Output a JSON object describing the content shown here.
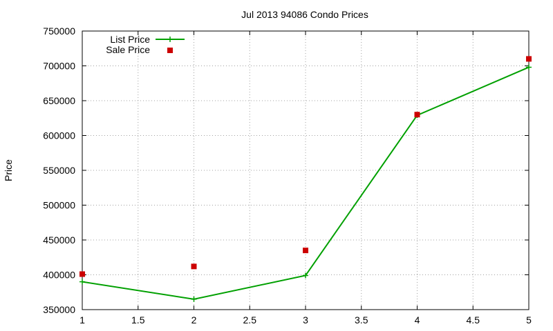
{
  "chart_data": {
    "type": "line",
    "title": "Jul 2013 94086 Condo Prices",
    "xlabel": "",
    "ylabel": "Price",
    "xlim": [
      1,
      5
    ],
    "ylim": [
      350000,
      750000
    ],
    "x_ticks": [
      1,
      1.5,
      2,
      2.5,
      3,
      3.5,
      4,
      4.5,
      5
    ],
    "x_tick_labels": [
      "1",
      "1.5",
      "2",
      "2.5",
      "3",
      "3.5",
      "4",
      "4.5",
      "5"
    ],
    "y_ticks": [
      350000,
      400000,
      450000,
      500000,
      550000,
      600000,
      650000,
      700000,
      750000
    ],
    "y_tick_labels": [
      "350000",
      "400000",
      "450000",
      "500000",
      "550000",
      "600000",
      "650000",
      "700000",
      "750000"
    ],
    "grid": true,
    "legend_position": "top-left",
    "series": [
      {
        "name": "List Price",
        "style": "line-with-plus-markers",
        "color": "#00a000",
        "x": [
          1,
          2,
          3,
          4,
          5
        ],
        "values": [
          390000,
          365000,
          399000,
          629000,
          698000
        ]
      },
      {
        "name": "Sale Price",
        "style": "square-markers",
        "color": "#cc0000",
        "x": [
          1,
          2,
          3,
          4,
          5
        ],
        "values": [
          401000,
          412000,
          435000,
          630000,
          710000
        ]
      }
    ]
  }
}
